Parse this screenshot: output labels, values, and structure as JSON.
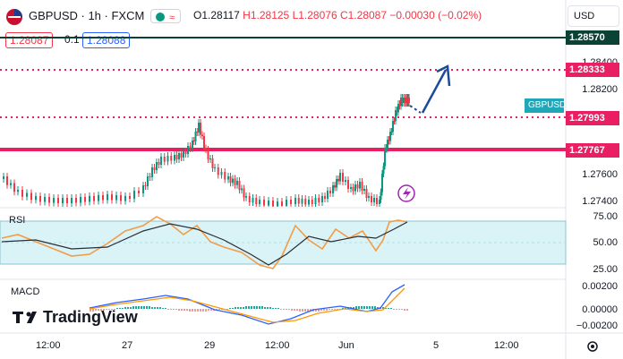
{
  "header": {
    "symbol": "GBPUSD · 1h · FXCM",
    "ohlc": {
      "open": "O1.28117",
      "high": "H1.28125",
      "low": "L1.28076",
      "close": "C1.28087",
      "change": "−0.00030 (−0.02%)"
    },
    "currency": "USD"
  },
  "order_row": {
    "sell_price": "1.28087",
    "lot": "0.1",
    "buy_price": "1.28088"
  },
  "price_axis": {
    "ticks": [
      "1.28400",
      "1.28200",
      "1.27600",
      "1.27400"
    ],
    "tags": {
      "top": "1.28570",
      "dotted_upper": "1.28333",
      "symbol_label": "GBPUSD",
      "dotted_lower": "1.27993",
      "support": "1.27767"
    }
  },
  "rsi": {
    "label": "RSI",
    "ticks": [
      "75.00",
      "50.00",
      "25.00"
    ]
  },
  "macd": {
    "label": "MACD",
    "ticks": [
      "0.00200",
      "0.00000",
      "−0.00200"
    ]
  },
  "time_axis": [
    "12:00",
    "27",
    "29",
    "12:00",
    "Jun",
    "5",
    "12:00"
  ],
  "brand": "TradingView",
  "colors": {
    "up": "#089981",
    "down": "#f23645",
    "level_dark": "#0a4236",
    "level_red": "#e91e63",
    "arrow": "#1e4a9c",
    "rsi_line": "#f39c45",
    "rsi_ma": "#2a2e39",
    "rsi_band": "#d9f3f7",
    "macd_line": "#2962ff",
    "signal_line": "#ff9800",
    "symbol_tag": "#22a7b8"
  },
  "icons": [
    "flag-icon",
    "eye-toggle-icon",
    "lightning-icon",
    "settings-gear-icon"
  ]
}
